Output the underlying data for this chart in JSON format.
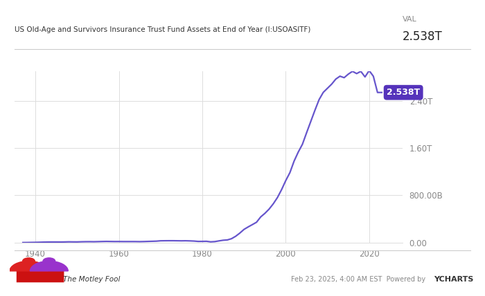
{
  "title_left": "US Old-Age and Survivors Insurance Trust Fund Assets at End of Year (I:USOASITF)",
  "title_val_label": "VAL",
  "title_val": "2.538T",
  "line_color": "#6655cc",
  "label_box_color": "#5533bb",
  "label_text": "2.538T",
  "label_text_color": "#ffffff",
  "ytick_labels": [
    "0.00",
    "800.00B",
    "1.60T",
    "2.40T"
  ],
  "ytick_values": [
    0,
    800000000000,
    1600000000000,
    2400000000000
  ],
  "xtick_labels": [
    "1940",
    "1960",
    "1980",
    "2000",
    "2020"
  ],
  "xtick_values": [
    1940,
    1960,
    1980,
    2000,
    2020
  ],
  "xmin": 1935,
  "xmax": 2028,
  "ymin": 0,
  "ymax": 2900000000000,
  "background_color": "#ffffff",
  "plot_bg_color": "#ffffff",
  "grid_color": "#dddddd",
  "data_years": [
    1937,
    1938,
    1939,
    1940,
    1941,
    1942,
    1943,
    1944,
    1945,
    1946,
    1947,
    1948,
    1949,
    1950,
    1951,
    1952,
    1953,
    1954,
    1955,
    1956,
    1957,
    1958,
    1959,
    1960,
    1961,
    1962,
    1963,
    1964,
    1965,
    1966,
    1967,
    1968,
    1969,
    1970,
    1971,
    1972,
    1973,
    1974,
    1975,
    1976,
    1977,
    1978,
    1979,
    1980,
    1981,
    1982,
    1983,
    1984,
    1985,
    1986,
    1987,
    1988,
    1989,
    1990,
    1991,
    1992,
    1993,
    1994,
    1995,
    1996,
    1997,
    1998,
    1999,
    2000,
    2001,
    2002,
    2003,
    2004,
    2005,
    2006,
    2007,
    2008,
    2009,
    2010,
    2011,
    2012,
    2013,
    2014,
    2015,
    2016,
    2017,
    2018,
    2019,
    2020,
    2021,
    2022,
    2023
  ],
  "data_values": [
    2600000000,
    3500000000,
    4800000000,
    6000000000,
    7900000000,
    10400000000,
    12000000000,
    12500000000,
    12500000000,
    12000000000,
    13000000000,
    15000000000,
    14000000000,
    13700000000,
    16000000000,
    17500000000,
    18000000000,
    17000000000,
    18700000000,
    20500000000,
    22000000000,
    21000000000,
    20000000000,
    20300000000,
    19600000000,
    19600000000,
    19600000000,
    19400000000,
    18300000000,
    19800000000,
    22100000000,
    24200000000,
    26500000000,
    32500000000,
    33500000000,
    34000000000,
    34000000000,
    33000000000,
    32000000000,
    33000000000,
    31000000000,
    28000000000,
    22000000000,
    22500000000,
    24000000000,
    15000000000,
    19000000000,
    31000000000,
    42000000000,
    47000000000,
    68000000000,
    109000000000,
    163000000000,
    225000000000,
    267000000000,
    306000000000,
    346000000000,
    436000000000,
    496000000000,
    567000000000,
    656000000000,
    762000000000,
    896000000000,
    1049000000000,
    1184000000000,
    1378000000000,
    1531000000000,
    1663000000000,
    1858000000000,
    2048000000000,
    2238000000000,
    2418000000000,
    2540000000000,
    2609000000000,
    2678000000000,
    2764000000000,
    2813000000000,
    2788000000000,
    2848000000000,
    2895000000000,
    2857000000000,
    2895000000000,
    2801000000000,
    2908000000000,
    2812000000000,
    2538000000000,
    2538000000000
  ]
}
